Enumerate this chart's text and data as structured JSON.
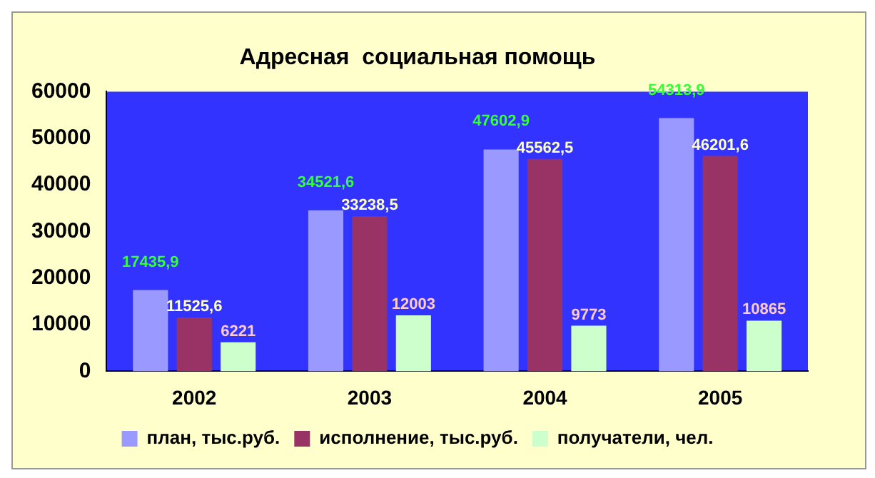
{
  "chart_data": {
    "type": "bar",
    "title": "Адресная  социальная помощь",
    "categories": [
      "2002",
      "2003",
      "2004",
      "2005"
    ],
    "series": [
      {
        "name": "план, тыс.руб.",
        "color": "#9999ff",
        "values": [
          17435.9,
          34521.6,
          47602.9,
          54313.9
        ],
        "value_labels": [
          "17435,9",
          "34521,6",
          "47602,9",
          "54313,9"
        ]
      },
      {
        "name": "исполнение, тыс.руб.",
        "color": "#993366",
        "values": [
          11525.6,
          33238.5,
          45562.5,
          46201.6
        ],
        "value_labels": [
          "11525,6",
          "33238,5",
          "45562,5",
          "46201,6"
        ]
      },
      {
        "name": "получатели, чел.",
        "color": "#ccffcc",
        "values": [
          6221,
          12003,
          9773,
          10865
        ],
        "value_labels": [
          "6221",
          "12003",
          "9773",
          "10865"
        ]
      }
    ],
    "ylim": [
      0,
      60000
    ],
    "yticks": [
      0,
      10000,
      20000,
      30000,
      40000,
      50000,
      60000
    ],
    "grid": false,
    "legend": "bottom"
  }
}
